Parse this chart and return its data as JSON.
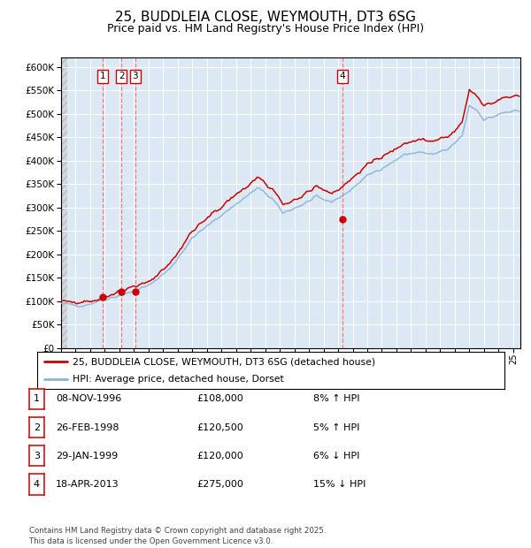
{
  "title": "25, BUDDLEIA CLOSE, WEYMOUTH, DT3 6SG",
  "subtitle": "Price paid vs. HM Land Registry's House Price Index (HPI)",
  "title_fontsize": 11,
  "subtitle_fontsize": 9,
  "background_color": "#ffffff",
  "plot_bg_color": "#dce9f5",
  "grid_color": "#ffffff",
  "ylim": [
    0,
    620000
  ],
  "yticks": [
    0,
    50000,
    100000,
    150000,
    200000,
    250000,
    300000,
    350000,
    400000,
    450000,
    500000,
    550000,
    600000
  ],
  "hpi_color": "#8ab4d4",
  "price_color": "#cc0000",
  "sale_marker_color": "#cc0000",
  "vline_color": "#ff6666",
  "transactions": [
    {
      "date": 1996.86,
      "price": 108000,
      "label": "1"
    },
    {
      "date": 1998.15,
      "price": 120500,
      "label": "2"
    },
    {
      "date": 1999.08,
      "price": 120000,
      "label": "3"
    },
    {
      "date": 2013.3,
      "price": 275000,
      "label": "4"
    }
  ],
  "legend_entries": [
    {
      "label": "25, BUDDLEIA CLOSE, WEYMOUTH, DT3 6SG (detached house)",
      "color": "#cc0000"
    },
    {
      "label": "HPI: Average price, detached house, Dorset",
      "color": "#8ab4d4"
    }
  ],
  "table_rows": [
    {
      "num": "1",
      "date": "08-NOV-1996",
      "price": "£108,000",
      "note": "8% ↑ HPI"
    },
    {
      "num": "2",
      "date": "26-FEB-1998",
      "price": "£120,500",
      "note": "5% ↑ HPI"
    },
    {
      "num": "3",
      "date": "29-JAN-1999",
      "price": "£120,000",
      "note": "6% ↓ HPI"
    },
    {
      "num": "4",
      "date": "18-APR-2013",
      "price": "£275,000",
      "note": "15% ↓ HPI"
    }
  ],
  "footer": "Contains HM Land Registry data © Crown copyright and database right 2025.\nThis data is licensed under the Open Government Licence v3.0."
}
